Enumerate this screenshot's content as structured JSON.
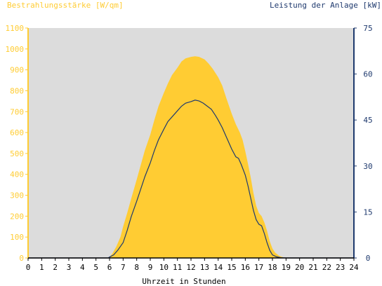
{
  "chart_data": {
    "type": "area",
    "title": "",
    "left_axis_title": "Bestrahlungsstärke [W/qm]",
    "right_axis_title": "Leistung der Anlage [kW]",
    "xlabel": "Uhrzeit in Stunden",
    "x_ticks": [
      "0",
      "1",
      "2",
      "3",
      "4",
      "5",
      "6",
      "7",
      "8",
      "9",
      "10",
      "11",
      "12",
      "13",
      "14",
      "15",
      "16",
      "17",
      "18",
      "19",
      "20",
      "21",
      "22",
      "23",
      "24"
    ],
    "xlim": [
      0,
      24
    ],
    "y_left_ticks": [
      "0",
      "100",
      "200",
      "300",
      "400",
      "500",
      "600",
      "700",
      "800",
      "900",
      "1000",
      "1100"
    ],
    "ylim_left": [
      0,
      1100
    ],
    "y_right_ticks": [
      "0",
      "15",
      "30",
      "45",
      "60",
      "75"
    ],
    "ylim_right": [
      0,
      75
    ],
    "grid": false,
    "colors": {
      "irradiance": "#ffcc33",
      "power": "#1f3a6e",
      "plot_bg": "#dcdcdc",
      "left_axis": "#ffcc33",
      "right_axis": "#1f3a6e"
    },
    "series": [
      {
        "axis": "left",
        "style": "area",
        "x": [
          0,
          5.9,
          6.0,
          6.2,
          6.5,
          6.8,
          7.0,
          7.3,
          7.6,
          8.0,
          8.3,
          8.6,
          9.0,
          9.3,
          9.6,
          10.0,
          10.3,
          10.6,
          11.0,
          11.3,
          11.6,
          12.0,
          12.3,
          12.6,
          13.0,
          13.3,
          13.6,
          14.0,
          14.3,
          14.6,
          15.0,
          15.3,
          15.6,
          15.8,
          16.0,
          16.2,
          16.4,
          16.6,
          16.8,
          17.0,
          17.2,
          17.4,
          17.6,
          17.8,
          18.0,
          18.2,
          18.5,
          18.8,
          19.0,
          24
        ],
        "values": [
          0,
          0,
          5,
          20,
          55,
          100,
          150,
          215,
          285,
          375,
          445,
          515,
          590,
          660,
          725,
          790,
          835,
          875,
          910,
          940,
          955,
          962,
          965,
          962,
          950,
          930,
          905,
          865,
          825,
          765,
          690,
          640,
          600,
          565,
          510,
          450,
          385,
          310,
          250,
          215,
          200,
          170,
          130,
          80,
          45,
          25,
          10,
          3,
          0,
          0
        ]
      },
      {
        "axis": "right",
        "style": "line",
        "x": [
          0,
          5.9,
          6.0,
          6.3,
          6.6,
          7.0,
          7.3,
          7.6,
          8.0,
          8.3,
          8.6,
          9.0,
          9.3,
          9.6,
          10.0,
          10.3,
          10.6,
          11.0,
          11.3,
          11.6,
          12.0,
          12.3,
          12.6,
          12.9,
          13.2,
          13.5,
          13.8,
          14.0,
          14.3,
          14.6,
          15.0,
          15.3,
          15.5,
          15.7,
          16.0,
          16.2,
          16.4,
          16.6,
          16.8,
          17.0,
          17.2,
          17.4,
          17.6,
          17.8,
          18.0,
          18.3,
          18.6,
          19.0,
          24
        ],
        "values": [
          0,
          0,
          0.3,
          1,
          2.5,
          5,
          9,
          13.5,
          18.5,
          22.5,
          26.5,
          31,
          35,
          38.5,
          42,
          44.5,
          46,
          48,
          49.5,
          50.5,
          51,
          51.5,
          51.2,
          50.5,
          49.5,
          48.5,
          46.5,
          45,
          42.5,
          39.5,
          35.5,
          33,
          32.5,
          30.5,
          27,
          23.5,
          19.5,
          15.5,
          12.5,
          11,
          10.5,
          8,
          5,
          2.5,
          1,
          0.4,
          0.1,
          0,
          0
        ]
      }
    ]
  }
}
